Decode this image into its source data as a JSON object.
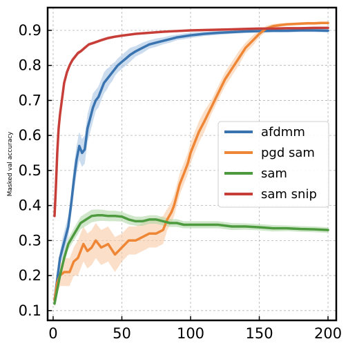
{
  "chart_data": {
    "type": "line",
    "title": "",
    "xlabel": "",
    "ylabel": "Masked val accuracy",
    "xlim": [
      -4,
      206
    ],
    "ylim": [
      0.072,
      0.965
    ],
    "xticks": [
      0,
      50,
      100,
      150,
      200
    ],
    "yticks": [
      0.1,
      0.2,
      0.3,
      0.4,
      0.5,
      0.6,
      0.7,
      0.8,
      0.9
    ],
    "grid": true,
    "legend_position": "center-right",
    "series": [
      {
        "name": "afdmm",
        "color": "#3a74b0",
        "band_color": "#a9c4e2",
        "x": [
          1,
          3,
          5,
          7,
          9,
          11,
          13,
          15,
          17,
          19,
          21,
          23,
          25,
          27,
          29,
          31,
          33,
          35,
          37,
          39,
          41,
          43,
          45,
          47,
          50,
          53,
          56,
          60,
          65,
          70,
          75,
          80,
          85,
          90,
          95,
          100,
          110,
          120,
          130,
          140,
          150,
          160,
          170,
          180,
          190,
          200
        ],
        "y": [
          0.13,
          0.19,
          0.25,
          0.28,
          0.31,
          0.34,
          0.4,
          0.47,
          0.53,
          0.57,
          0.55,
          0.56,
          0.62,
          0.65,
          0.68,
          0.7,
          0.71,
          0.73,
          0.75,
          0.76,
          0.77,
          0.78,
          0.79,
          0.8,
          0.81,
          0.82,
          0.83,
          0.84,
          0.85,
          0.86,
          0.865,
          0.87,
          0.875,
          0.88,
          0.883,
          0.886,
          0.89,
          0.893,
          0.895,
          0.897,
          0.898,
          0.899,
          0.899,
          0.9,
          0.9,
          0.899
        ],
        "spread": [
          0.02,
          0.02,
          0.02,
          0.03,
          0.03,
          0.03,
          0.03,
          0.04,
          0.04,
          0.04,
          0.04,
          0.04,
          0.04,
          0.04,
          0.04,
          0.03,
          0.03,
          0.03,
          0.03,
          0.03,
          0.025,
          0.025,
          0.02,
          0.02,
          0.02,
          0.02,
          0.02,
          0.015,
          0.015,
          0.012,
          0.012,
          0.01,
          0.01,
          0.008,
          0.008,
          0.008,
          0.006,
          0.006,
          0.005,
          0.005,
          0.005,
          0.005,
          0.005,
          0.005,
          0.005,
          0.005
        ]
      },
      {
        "name": "pgd sam",
        "color": "#ef8636",
        "band_color": "#f8c9a3",
        "x": [
          1,
          3,
          5,
          8,
          12,
          15,
          18,
          22,
          25,
          28,
          31,
          35,
          40,
          45,
          50,
          55,
          60,
          65,
          70,
          75,
          80,
          83,
          86,
          88,
          90,
          92,
          95,
          98,
          100,
          103,
          106,
          110,
          115,
          120,
          125,
          130,
          135,
          140,
          145,
          150,
          155,
          160,
          165,
          170,
          175,
          180,
          185,
          190,
          195,
          200
        ],
        "y": [
          0.13,
          0.18,
          0.2,
          0.21,
          0.21,
          0.24,
          0.25,
          0.29,
          0.27,
          0.28,
          0.3,
          0.28,
          0.29,
          0.26,
          0.28,
          0.3,
          0.3,
          0.31,
          0.32,
          0.32,
          0.33,
          0.36,
          0.38,
          0.4,
          0.43,
          0.46,
          0.49,
          0.52,
          0.55,
          0.58,
          0.61,
          0.64,
          0.68,
          0.72,
          0.76,
          0.79,
          0.82,
          0.85,
          0.87,
          0.89,
          0.905,
          0.912,
          0.915,
          0.917,
          0.918,
          0.919,
          0.92,
          0.92,
          0.921,
          0.921
        ],
        "spread": [
          0.02,
          0.03,
          0.03,
          0.04,
          0.04,
          0.04,
          0.05,
          0.05,
          0.05,
          0.05,
          0.05,
          0.05,
          0.05,
          0.05,
          0.04,
          0.04,
          0.04,
          0.04,
          0.04,
          0.04,
          0.04,
          0.03,
          0.03,
          0.03,
          0.03,
          0.03,
          0.03,
          0.03,
          0.03,
          0.03,
          0.03,
          0.03,
          0.02,
          0.02,
          0.02,
          0.02,
          0.02,
          0.015,
          0.015,
          0.01,
          0.008,
          0.006,
          0.005,
          0.004,
          0.004,
          0.004,
          0.004,
          0.004,
          0.004,
          0.004
        ]
      },
      {
        "name": "sam",
        "color": "#4e9a3f",
        "band_color": "#b2d7a8",
        "x": [
          1,
          3,
          5,
          8,
          11,
          14,
          17,
          20,
          24,
          28,
          32,
          36,
          40,
          45,
          50,
          55,
          60,
          65,
          70,
          75,
          80,
          85,
          90,
          95,
          100,
          110,
          120,
          130,
          140,
          150,
          160,
          170,
          180,
          190,
          200
        ],
        "y": [
          0.12,
          0.16,
          0.2,
          0.25,
          0.29,
          0.31,
          0.33,
          0.35,
          0.36,
          0.37,
          0.372,
          0.372,
          0.37,
          0.37,
          0.368,
          0.36,
          0.355,
          0.355,
          0.36,
          0.36,
          0.355,
          0.35,
          0.35,
          0.345,
          0.345,
          0.345,
          0.345,
          0.34,
          0.34,
          0.338,
          0.335,
          0.335,
          0.333,
          0.332,
          0.33
        ],
        "spread": [
          0.01,
          0.012,
          0.014,
          0.015,
          0.016,
          0.017,
          0.018,
          0.018,
          0.018,
          0.018,
          0.017,
          0.016,
          0.015,
          0.015,
          0.014,
          0.014,
          0.013,
          0.013,
          0.012,
          0.012,
          0.012,
          0.011,
          0.011,
          0.01,
          0.01,
          0.01,
          0.01,
          0.01,
          0.009,
          0.009,
          0.009,
          0.008,
          0.008,
          0.008,
          0.008
        ]
      },
      {
        "name": "sam snip",
        "color": "#c73e39",
        "band_color": "#eaa9a6",
        "x": [
          1,
          2,
          3,
          4,
          5,
          6,
          7,
          8,
          10,
          12,
          14,
          16,
          18,
          20,
          23,
          26,
          30,
          35,
          40,
          45,
          50,
          60,
          70,
          80,
          90,
          100,
          110,
          120,
          130,
          140,
          150,
          160,
          170,
          180,
          190,
          200
        ],
        "y": [
          0.37,
          0.45,
          0.55,
          0.62,
          0.66,
          0.69,
          0.72,
          0.75,
          0.78,
          0.8,
          0.815,
          0.825,
          0.835,
          0.84,
          0.85,
          0.86,
          0.865,
          0.872,
          0.878,
          0.882,
          0.885,
          0.89,
          0.893,
          0.896,
          0.898,
          0.9,
          0.901,
          0.902,
          0.903,
          0.904,
          0.905,
          0.905,
          0.906,
          0.906,
          0.907,
          0.907
        ],
        "spread": [
          0.02,
          0.02,
          0.02,
          0.02,
          0.02,
          0.015,
          0.015,
          0.012,
          0.01,
          0.008,
          0.007,
          0.006,
          0.006,
          0.005,
          0.005,
          0.004,
          0.004,
          0.004,
          0.004,
          0.003,
          0.003,
          0.003,
          0.003,
          0.003,
          0.003,
          0.003,
          0.003,
          0.003,
          0.003,
          0.003,
          0.003,
          0.003,
          0.003,
          0.003,
          0.003,
          0.003
        ]
      }
    ]
  }
}
